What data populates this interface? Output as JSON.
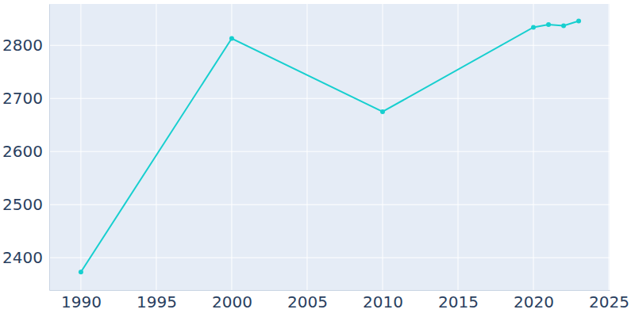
{
  "chart_data": {
    "type": "line",
    "x": [
      1990,
      2000,
      2010,
      2020,
      2021,
      2022,
      2023
    ],
    "values": [
      2373,
      2813,
      2675,
      2834,
      2839,
      2837,
      2846
    ],
    "color": "#17cfcf",
    "marker": "circle",
    "xlim": [
      1987.9,
      2025.05
    ],
    "ylim": [
      2339,
      2878
    ],
    "xticks": [
      1990,
      1995,
      2000,
      2005,
      2010,
      2015,
      2020,
      2025
    ],
    "yticks": [
      2400,
      2500,
      2600,
      2700,
      2800
    ],
    "grid": true
  }
}
